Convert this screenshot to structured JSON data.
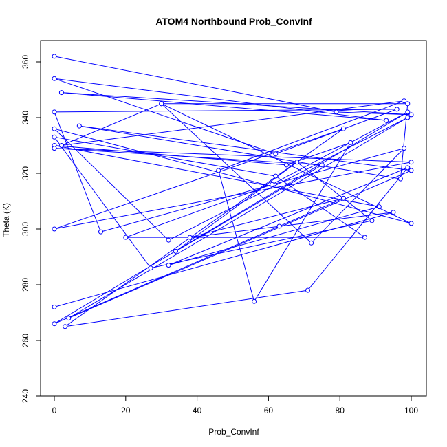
{
  "chart_data": {
    "type": "scatter",
    "title": "ATOM4 Northbound Prob_ConvInf",
    "xlabel": "Prob_ConvInf",
    "ylabel": "Theta (K)",
    "xlim": [
      0,
      100
    ],
    "ylim": [
      240,
      360
    ],
    "xticks": [
      0,
      20,
      40,
      60,
      80,
      100
    ],
    "yticks": [
      240,
      260,
      280,
      300,
      320,
      340,
      360
    ],
    "grid": false,
    "connected": true,
    "color": "#0000ff",
    "series": [
      {
        "x": [
          0,
          79,
          100,
          2,
          93,
          0,
          62,
          96,
          0,
          13,
          98,
          72,
          30,
          99,
          97,
          7,
          100,
          4,
          99,
          32,
          0,
          100,
          30,
          2,
          98,
          46,
          56,
          83,
          65,
          0,
          91,
          32,
          99,
          71,
          3,
          81,
          0,
          100,
          0,
          75,
          34,
          68,
          89,
          27,
          0,
          62,
          87,
          20,
          61,
          99,
          0,
          63,
          81,
          38,
          95,
          0
        ],
        "y": [
          362,
          342,
          341,
          349,
          339,
          354,
          327,
          343,
          342,
          299,
          329,
          295,
          345,
          345,
          318,
          337,
          321,
          268,
          340,
          296,
          336,
          302,
          345,
          330,
          346,
          321,
          274,
          331,
          323,
          330,
          308,
          287,
          322,
          278,
          265,
          336,
          300,
          324,
          329,
          323,
          292,
          324,
          303,
          286,
          333,
          319,
          297,
          297,
          316,
          342,
          266,
          301,
          311,
          297,
          306,
          272
        ]
      }
    ]
  }
}
